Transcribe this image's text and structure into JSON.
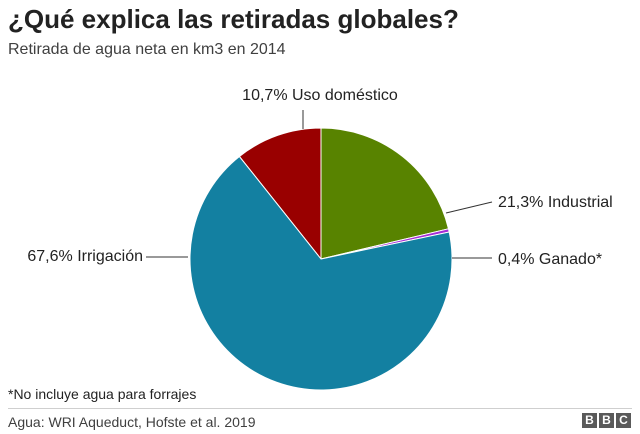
{
  "header": {
    "title": "¿Qué explica las retiradas globales?",
    "subtitle": "Retirada de agua neta en km3 en 2014"
  },
  "chart_data": {
    "type": "pie",
    "title": "¿Qué explica las retiradas globales?",
    "subtitle": "Retirada de agua neta en km3 en 2014",
    "slices": [
      {
        "name": "Uso doméstico",
        "label": "10,7% Uso doméstico",
        "value": 10.7,
        "color": "#990000"
      },
      {
        "name": "Industrial",
        "label": "21,3% Industrial",
        "value": 21.3,
        "color": "#588300"
      },
      {
        "name": "Ganado*",
        "label": "0,4% Ganado*",
        "value": 0.4,
        "color": "#a62dd6"
      },
      {
        "name": "Irrigación",
        "label": "67,6% Irrigación",
        "value": 67.6,
        "color": "#1380a1"
      }
    ]
  },
  "footer": {
    "footnote": "*No incluye agua para forrajes",
    "source": "Agua: WRI Aqueduct, Hofste et al. 2019",
    "logo": [
      "B",
      "B",
      "C"
    ]
  }
}
